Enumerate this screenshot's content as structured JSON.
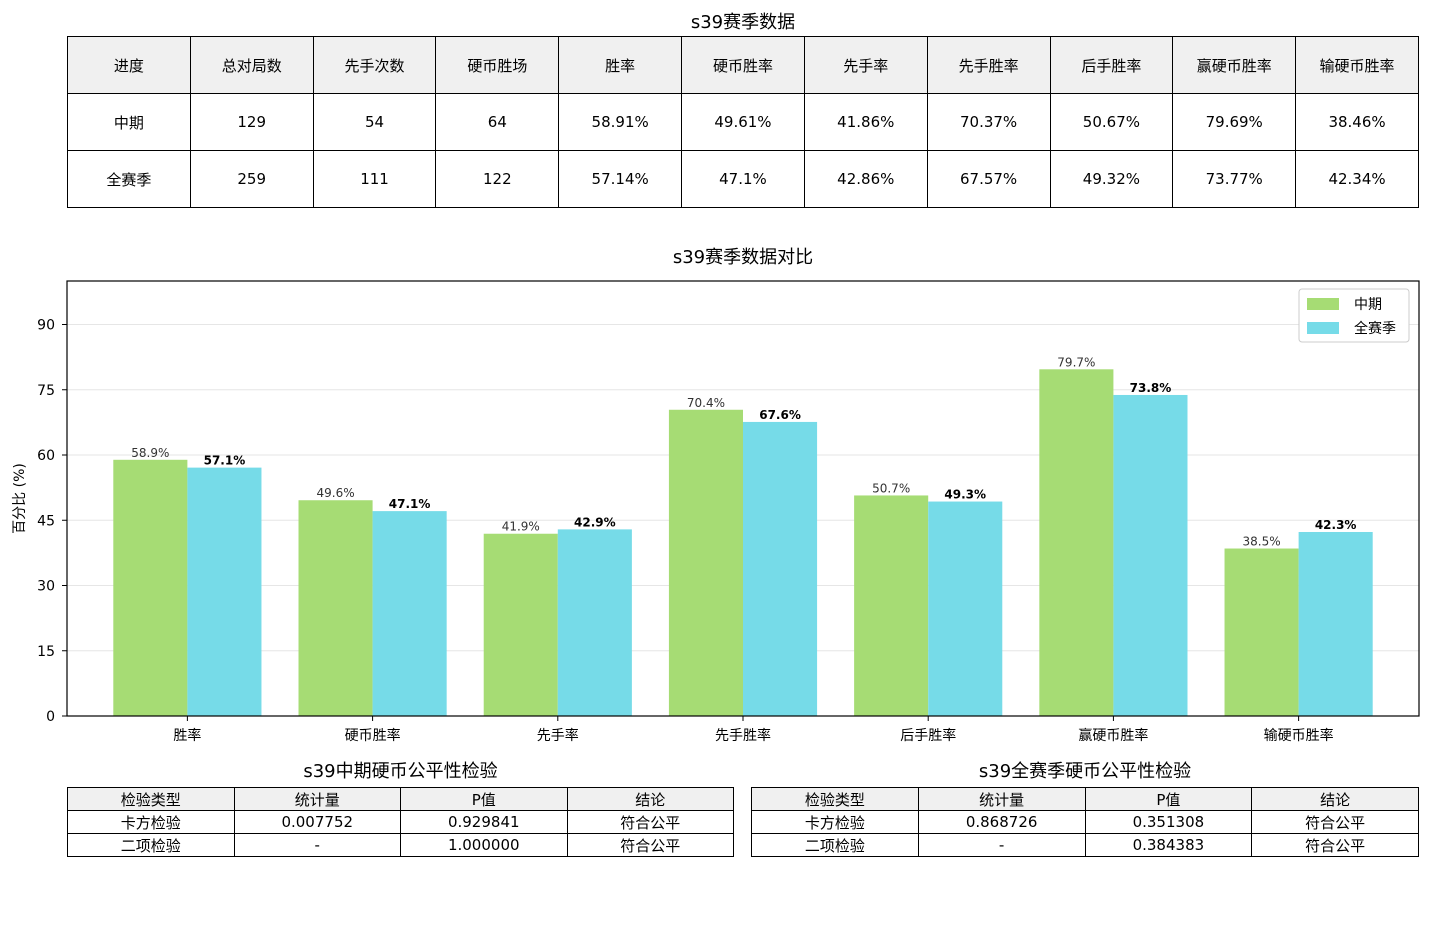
{
  "season_table": {
    "title": "s39赛季数据",
    "headers": [
      "进度",
      "总对局数",
      "先手次数",
      "硬币胜场",
      "胜率",
      "硬币胜率",
      "先手率",
      "先手胜率",
      "后手胜率",
      "赢硬币胜率",
      "输硬币胜率"
    ],
    "rows": [
      [
        "中期",
        "129",
        "54",
        "64",
        "58.91%",
        "49.61%",
        "41.86%",
        "70.37%",
        "50.67%",
        "79.69%",
        "38.46%"
      ],
      [
        "全赛季",
        "259",
        "111",
        "122",
        "57.14%",
        "47.1%",
        "42.86%",
        "67.57%",
        "49.32%",
        "73.77%",
        "42.34%"
      ]
    ]
  },
  "chart_data": {
    "type": "bar",
    "title": "s39赛季数据对比",
    "xlabel": "",
    "ylabel": "百分比 (%)",
    "ylim": [
      0,
      100
    ],
    "yticks": [
      0,
      15,
      30,
      45,
      60,
      75,
      90
    ],
    "grid": true,
    "legend_position": "top-right",
    "categories": [
      "胜率",
      "硬币胜率",
      "先手率",
      "先手胜率",
      "后手胜率",
      "赢硬币胜率",
      "输硬币胜率"
    ],
    "series": [
      {
        "name": "中期",
        "color": "#a6dc74",
        "values": [
          58.9,
          49.6,
          41.9,
          70.4,
          50.7,
          79.7,
          38.5
        ],
        "labels": [
          "58.9%",
          "49.6%",
          "41.9%",
          "70.4%",
          "50.7%",
          "79.7%",
          "38.5%"
        ]
      },
      {
        "name": "全赛季",
        "color": "#76dbe8",
        "values": [
          57.1,
          47.1,
          42.9,
          67.6,
          49.3,
          73.8,
          42.3
        ],
        "labels": [
          "57.1%",
          "47.1%",
          "42.9%",
          "67.6%",
          "49.3%",
          "73.8%",
          "42.3%"
        ]
      }
    ]
  },
  "mid_test": {
    "title": "s39中期硬币公平性检验",
    "headers": [
      "检验类型",
      "统计量",
      "P值",
      "结论"
    ],
    "rows": [
      [
        "卡方检验",
        "0.007752",
        "0.929841",
        "符合公平"
      ],
      [
        "二项检验",
        "-",
        "1.000000",
        "符合公平"
      ]
    ]
  },
  "full_test": {
    "title": "s39全赛季硬币公平性检验",
    "headers": [
      "检验类型",
      "统计量",
      "P值",
      "结论"
    ],
    "rows": [
      [
        "卡方检验",
        "0.868726",
        "0.351308",
        "符合公平"
      ],
      [
        "二项检验",
        "-",
        "0.384383",
        "符合公平"
      ]
    ]
  }
}
